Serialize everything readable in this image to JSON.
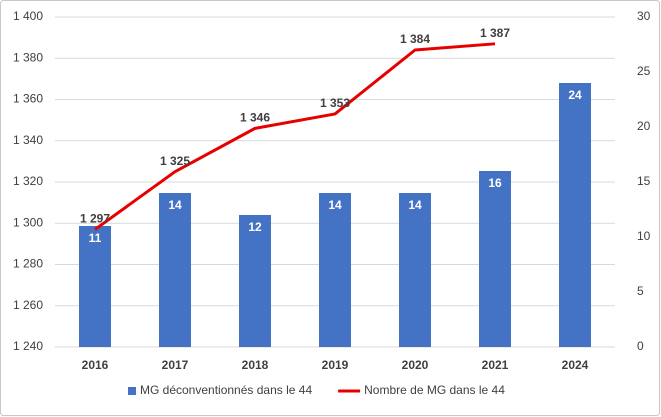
{
  "chart_data": {
    "type": "combo",
    "categories": [
      "2016",
      "2017",
      "2018",
      "2019",
      "2020",
      "2021",
      "2024"
    ],
    "series": [
      {
        "name": "MG déconventionnés dans le 44",
        "type": "bar",
        "axis": "y2",
        "color": "#4472c4",
        "values": [
          11,
          14,
          12,
          14,
          14,
          16,
          24
        ]
      },
      {
        "name": "Nombre de MG dans le 44",
        "type": "line",
        "color": "#e60000",
        "values": [
          1297,
          1325,
          1346,
          1353,
          1384,
          1387,
          null
        ],
        "value_labels": [
          "1 297",
          "1 325",
          "1 346",
          "1 353",
          "1 384",
          "1 387",
          null
        ]
      }
    ],
    "ylim": [
      1240,
      1400
    ],
    "yticks": [
      {
        "value": 1240,
        "label": "1 240"
      },
      {
        "value": 1260,
        "label": "1 260"
      },
      {
        "value": 1280,
        "label": "1 280"
      },
      {
        "value": 1300,
        "label": "1 300"
      },
      {
        "value": 1320,
        "label": "1 320"
      },
      {
        "value": 1340,
        "label": "1 340"
      },
      {
        "value": 1360,
        "label": "1 360"
      },
      {
        "value": 1380,
        "label": "1 380"
      },
      {
        "value": 1400,
        "label": "1 400"
      }
    ],
    "y2lim": [
      0,
      30
    ],
    "y2ticks": [
      0,
      5,
      10,
      15,
      20,
      25,
      30
    ],
    "grid": true,
    "legend": "bottom"
  }
}
